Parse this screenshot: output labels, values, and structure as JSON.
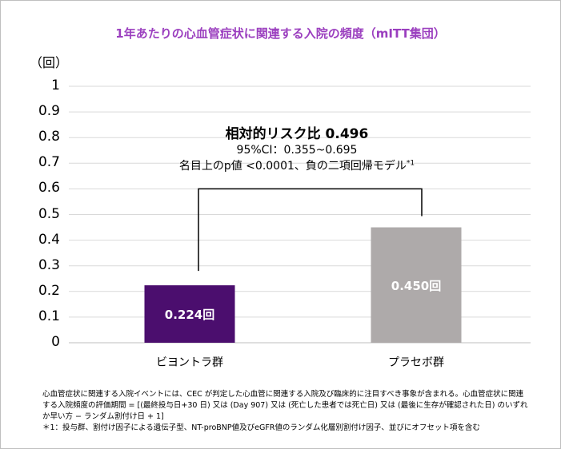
{
  "chart_data": {
    "type": "bar",
    "title": "1年あたりの心血管症状に関連する入院の頻度（mITT集団）",
    "ylabel": "（回）",
    "ylim": [
      0,
      1
    ],
    "yticks": [
      "0",
      "0.1",
      "0.2",
      "0.3",
      "0.4",
      "0.5",
      "0.6",
      "0.7",
      "0.8",
      "0.9",
      "1"
    ],
    "grid": true,
    "categories": [
      "ビヨントラ群",
      "プラセボ群"
    ],
    "values": [
      0.224,
      0.45
    ],
    "data_labels": [
      "0.224回",
      "0.450回"
    ],
    "colors": [
      "#4b0e6e",
      "#aeaaaa"
    ],
    "annotation": {
      "line1": "相対的リスク比 0.496",
      "line2": "95%CI：0.355~0.695",
      "line3": "名目上のp値 <0.0001、負の二項回帰モデル",
      "line3_sup": "*1",
      "bracket_level": 0.6
    }
  },
  "footnotes": [
    "心血管症状に関連する入院イベントには、CEC が判定した心血管に関連する入院及び臨床的に注目すべき事象が含まれる。心血管症状に関連する入院頻度の評価期間 = [(最終投与日+30 日) 又は (Day 907) 又は (死亡した患者では死亡日) 又は (最後に生存が確認された日) のいずれか早い方 − ランダム割付け日 + 1]",
    "＊1：投与群、割付け因子による遺伝子型、NT-proBNP値及びeGFR値のランダム化層別割付け因子、並びにオフセット項を含む"
  ]
}
